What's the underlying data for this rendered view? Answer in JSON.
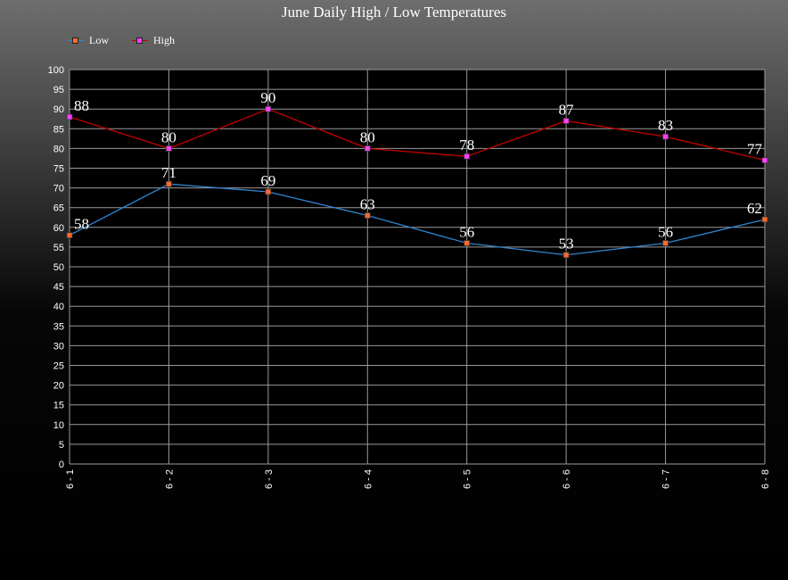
{
  "chart_data": {
    "type": "line",
    "title": "June Daily High / Low Temperatures",
    "categories": [
      "6 - 1",
      "6 - 2",
      "6 - 3",
      "6 - 4",
      "6 - 5",
      "6 - 6",
      "6 - 7",
      "6 - 8"
    ],
    "series": [
      {
        "name": "Low",
        "values": [
          58,
          71,
          69,
          63,
          56,
          53,
          56,
          62
        ],
        "line_color": "#2e86d1",
        "marker_color": "#ff6a2a"
      },
      {
        "name": "High",
        "values": [
          88,
          80,
          90,
          80,
          78,
          87,
          83,
          77
        ],
        "line_color": "#c00000",
        "marker_color": "#ff40ff"
      }
    ],
    "ylim": [
      0,
      100
    ],
    "ytick_step": 5,
    "xlabel": "",
    "ylabel": "",
    "grid": true,
    "legend_position": "top-left",
    "plot_background": "#000000"
  }
}
